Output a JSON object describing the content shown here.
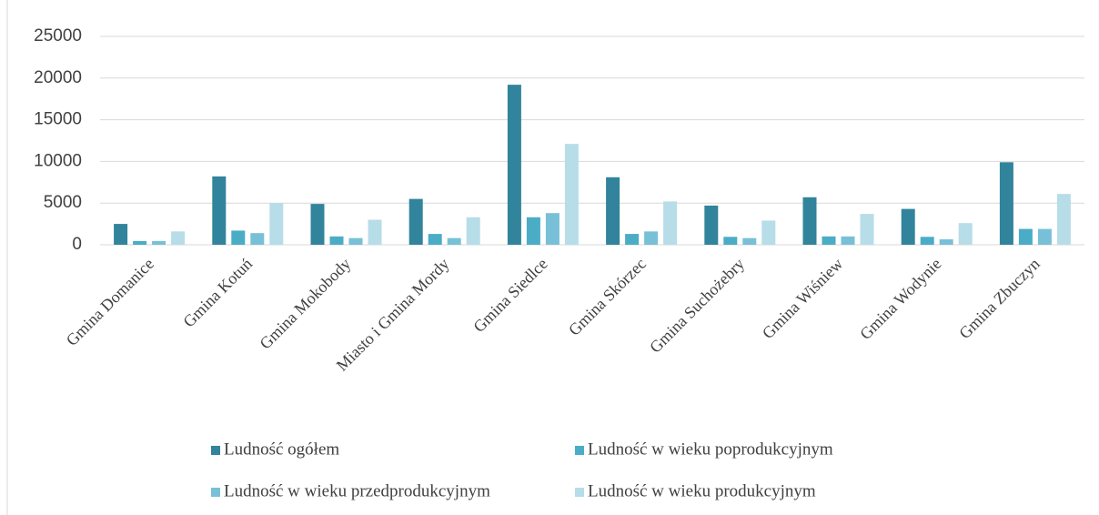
{
  "chart_data": {
    "type": "bar",
    "categories": [
      "Gmina Domanice",
      "Gmina Kotuń",
      "Gmina Mokobody",
      "Miasto i Gmina Mordy",
      "Gmina Siedlce",
      "Gmina Skórzec",
      "Gmina Suchożebry",
      "Gmina Wiśniew",
      "Gmina Wodynie",
      "Gmina Zbuczyn"
    ],
    "series": [
      {
        "name": "Ludność ogółem",
        "color": "#31849b",
        "values": [
          2500,
          8200,
          4900,
          5500,
          19200,
          8100,
          4700,
          5700,
          4300,
          9900
        ]
      },
      {
        "name": "Ludność w wieku poprodukcyjnym",
        "color": "#4bacc6",
        "values": [
          450,
          1700,
          1000,
          1300,
          3300,
          1300,
          950,
          1000,
          950,
          1900
        ]
      },
      {
        "name": "Ludność w wieku przedprodukcyjnym",
        "color": "#78c0d8",
        "values": [
          450,
          1400,
          800,
          800,
          3800,
          1600,
          800,
          1000,
          650,
          1900
        ]
      },
      {
        "name": "Ludność w wieku produkcyjnym",
        "color": "#b7dde8",
        "values": [
          1600,
          5000,
          3000,
          3300,
          12100,
          5200,
          2900,
          3700,
          2600,
          6100
        ]
      }
    ],
    "ylim": [
      0,
      25000
    ],
    "yticks": [
      0,
      5000,
      10000,
      15000,
      20000,
      25000
    ],
    "grid": true,
    "legend": "bottom"
  }
}
